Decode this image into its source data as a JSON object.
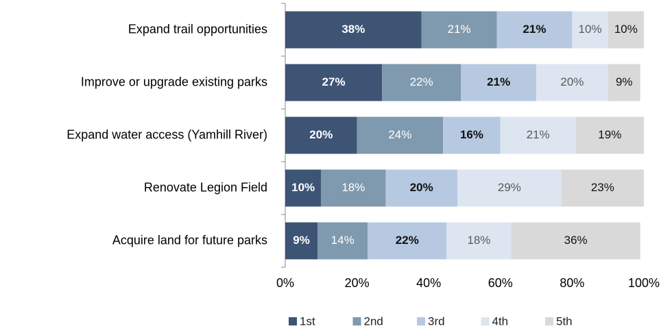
{
  "chart_data": {
    "type": "stacked_barh",
    "categories": [
      "Expand trail opportunities",
      "Improve or upgrade existing parks",
      "Expand water access (Yamhill River)",
      "Renovate Legion Field",
      "Acquire land for future parks"
    ],
    "series": [
      {
        "name": "1st",
        "color": "#3d5475",
        "values": [
          38,
          27,
          20,
          10,
          9
        ],
        "value_labels": [
          "38%",
          "27%",
          "20%",
          "10%",
          "9%"
        ]
      },
      {
        "name": "2nd",
        "color": "#7f99ae",
        "values": [
          21,
          22,
          24,
          18,
          14
        ],
        "value_labels": [
          "21%",
          "22%",
          "24%",
          "18%",
          "14%"
        ]
      },
      {
        "name": "3rd",
        "color": "#b7c9e0",
        "values": [
          21,
          21,
          16,
          20,
          22
        ],
        "value_labels": [
          "21%",
          "21%",
          "16%",
          "20%",
          "22%"
        ]
      },
      {
        "name": "4th",
        "color": "#dde6f0",
        "values": [
          10,
          20,
          21,
          29,
          18
        ],
        "value_labels": [
          "10%",
          "20%",
          "21%",
          "29%",
          "18%"
        ]
      },
      {
        "name": "5th",
        "color": "#d9d9d9",
        "values": [
          10,
          9,
          19,
          23,
          36
        ],
        "value_labels": [
          "10%",
          "9%",
          "19%",
          "23%",
          "36%"
        ]
      }
    ],
    "xlim": [
      0,
      100
    ],
    "xticks": [
      {
        "value": 0,
        "label": "0%"
      },
      {
        "value": 20,
        "label": "20%"
      },
      {
        "value": 40,
        "label": "40%"
      },
      {
        "value": 60,
        "label": "60%"
      },
      {
        "value": 80,
        "label": "80%"
      },
      {
        "value": 100,
        "label": "100%"
      }
    ],
    "legend": "bottom"
  }
}
